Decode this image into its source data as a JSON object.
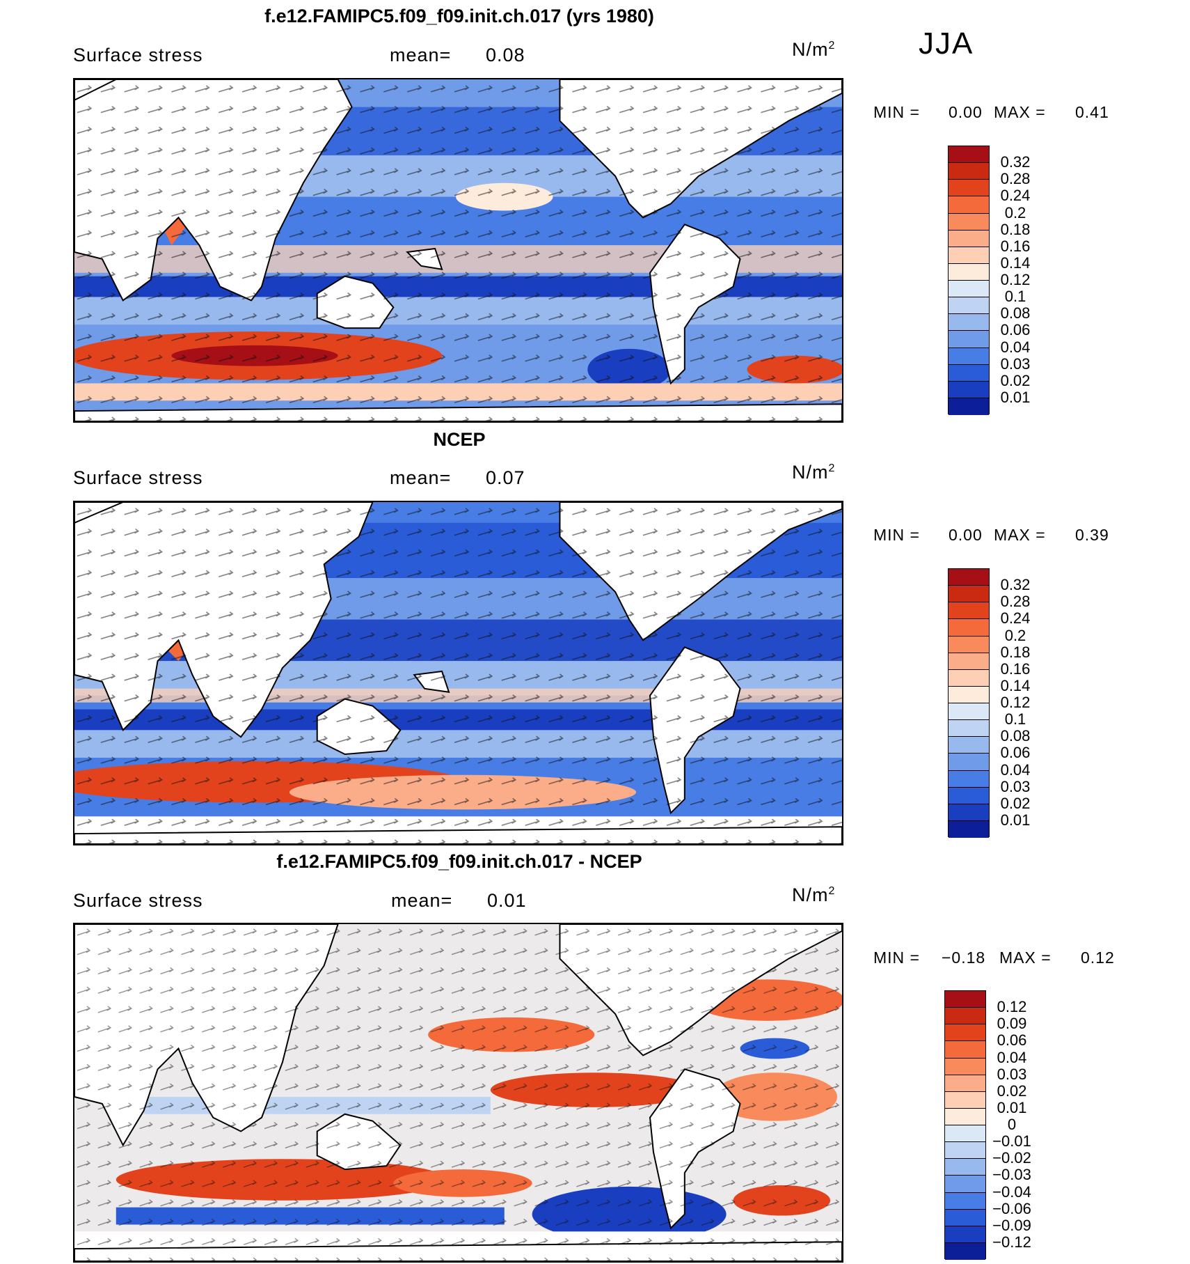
{
  "season": "JJA",
  "units": "N/m",
  "units_sup": "2",
  "panels": [
    {
      "title": "f.e12.FAMIPC5.f09_f09.init.ch.017 (yrs 1980)",
      "field_label": "Surface stress",
      "mean_label": "mean=",
      "mean_value": "0.08",
      "min_label": "MIN =",
      "min_value": "0.00",
      "max_label": "MAX =",
      "max_value": "0.41",
      "colorbar": {
        "labels": [
          "0.32",
          "0.28",
          "0.24",
          "0.2",
          "0.18",
          "0.16",
          "0.14",
          "0.12",
          "0.1",
          "0.08",
          "0.06",
          "0.04",
          "0.03",
          "0.02",
          "0.01"
        ],
        "colors": [
          "#a50f15",
          "#cb2a12",
          "#e3431c",
          "#f46a3b",
          "#f88a5c",
          "#fbad8a",
          "#fdd0b6",
          "#fdebdc",
          "#dbe9f7",
          "#bfd4f2",
          "#98b9ee",
          "#6f9be8",
          "#477de4",
          "#2a5cd8",
          "#1a3ec0",
          "#0c1f98"
        ]
      }
    },
    {
      "title": "NCEP",
      "field_label": "Surface stress",
      "mean_label": "mean=",
      "mean_value": "0.07",
      "min_label": "MIN =",
      "min_value": "0.00",
      "max_label": "MAX =",
      "max_value": "0.39",
      "colorbar": {
        "labels": [
          "0.32",
          "0.28",
          "0.24",
          "0.2",
          "0.18",
          "0.16",
          "0.14",
          "0.12",
          "0.1",
          "0.08",
          "0.06",
          "0.04",
          "0.03",
          "0.02",
          "0.01"
        ],
        "colors": [
          "#a50f15",
          "#cb2a12",
          "#e3431c",
          "#f46a3b",
          "#f88a5c",
          "#fbad8a",
          "#fdd0b6",
          "#fdebdc",
          "#dbe9f7",
          "#bfd4f2",
          "#98b9ee",
          "#6f9be8",
          "#477de4",
          "#2a5cd8",
          "#1a3ec0",
          "#0c1f98"
        ]
      }
    },
    {
      "title": "f.e12.FAMIPC5.f09_f09.init.ch.017 - NCEP",
      "field_label": "Surface stress",
      "mean_label": "mean=",
      "mean_value": "0.01",
      "min_label": "MIN =",
      "min_value": "−0.18",
      "max_label": "MAX =",
      "max_value": "0.12",
      "colorbar": {
        "labels": [
          "0.12",
          "0.09",
          "0.06",
          "0.04",
          "0.03",
          "0.02",
          "0.01",
          "0",
          "−0.01",
          "−0.02",
          "−0.03",
          "−0.04",
          "−0.06",
          "−0.09",
          "−0.12"
        ],
        "colors": [
          "#a50f15",
          "#cb2a12",
          "#e3431c",
          "#f46a3b",
          "#f88a5c",
          "#fbad8a",
          "#fdd0b6",
          "#fdebdc",
          "#dbe9f7",
          "#bfd4f2",
          "#98b9ee",
          "#6f9be8",
          "#477de4",
          "#2a5cd8",
          "#1a3ec0",
          "#0c1f98"
        ]
      }
    }
  ]
}
